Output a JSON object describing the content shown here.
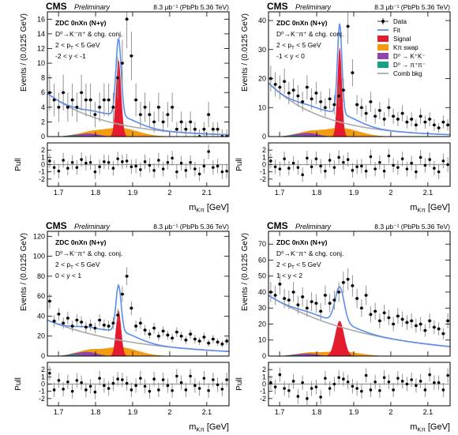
{
  "header": {
    "cms": "CMS",
    "preliminary": "Preliminary",
    "lumi": "8.3 μb⁻¹ (PbPb 5.36 TeV)"
  },
  "labels": {
    "ylabel": "Events / (0.0125 GeV)",
    "pull_label": "Pull",
    "xlabel": "m_Kπ [GeV]",
    "selection": "ZDC 0nXn (N+γ)",
    "decay": "D⁰→K⁻π⁺ & chg. conj.",
    "pt_cut": "2 < p_T < 5 GeV"
  },
  "legend": [
    {
      "label": "Data",
      "color": "#000000",
      "kind": "data"
    },
    {
      "label": "Fit",
      "color": "#5b8def",
      "kind": "line"
    },
    {
      "label": "Signal",
      "color": "#e41a2f",
      "kind": "box"
    },
    {
      "label": "Kπ swap",
      "color": "#f39c12",
      "kind": "box"
    },
    {
      "label": "D⁰ → K⁺K⁻",
      "color": "#8e44ad",
      "kind": "box"
    },
    {
      "label": "D⁰ → π⁺π⁻",
      "color": "#16a085",
      "kind": "box"
    },
    {
      "label": "Comb bkg",
      "color": "#aaaaaa",
      "kind": "line"
    }
  ],
  "colors": {
    "fit": "#5b8def",
    "signal": "#e41a2f",
    "swap": "#f39c12",
    "kk": "#8e44ad",
    "pipi": "#16a085",
    "comb": "#aaaaaa",
    "data": "#000000",
    "error": "#888888"
  },
  "chart_data": [
    {
      "type": "line",
      "rapidity": "-2 < y < -1",
      "xlim": [
        1.67,
        2.16
      ],
      "ylim": [
        0,
        17
      ],
      "yticks": [
        0,
        2,
        4,
        6,
        8,
        10,
        12,
        14,
        16
      ],
      "xticks": [
        1.7,
        1.8,
        1.9,
        2.0,
        2.1
      ],
      "signal": {
        "mean": 1.862,
        "amp": 10.5,
        "sigma": 0.007
      },
      "swap": {
        "mean": 1.862,
        "amp": 1.2,
        "sigma": 0.05
      },
      "kk": {
        "mean": 1.785,
        "amp": 0.4,
        "sigma": 0.025
      },
      "comb": {
        "a": 5.9,
        "b": -6.5
      },
      "data_y": [
        6,
        5,
        4,
        6,
        4,
        5,
        4,
        6,
        5,
        5,
        3,
        4,
        5,
        5,
        4,
        8,
        10,
        16,
        11,
        5,
        3,
        4,
        3,
        2,
        4,
        2,
        3,
        4,
        1,
        2,
        1,
        2,
        1,
        0,
        1,
        3,
        1,
        1,
        0,
        0
      ],
      "pull": [
        0.5,
        -0.4,
        -0.9,
        0.6,
        -0.5,
        0.3,
        -0.4,
        0.7,
        0.2,
        0.3,
        -1.0,
        -0.3,
        0.4,
        0.3,
        -0.5,
        0.8,
        0.4,
        0.5,
        -0.3,
        -0.2,
        -0.7,
        0.4,
        -0.1,
        -0.8,
        0.6,
        -0.6,
        0.3,
        0.9,
        -1.0,
        0.2,
        -0.8,
        0.3,
        -0.6,
        -1.3,
        -0.2,
        1.8,
        -0.4,
        -0.2,
        -1.0,
        -0.9
      ]
    },
    {
      "type": "line",
      "rapidity": "-1 < y < 0",
      "xlim": [
        1.67,
        2.16
      ],
      "ylim": [
        0,
        43
      ],
      "yticks": [
        0,
        10,
        20,
        30,
        40
      ],
      "xticks": [
        1.7,
        1.8,
        1.9,
        2.0,
        2.1
      ],
      "signal": {
        "mean": 1.862,
        "amp": 31,
        "sigma": 0.006
      },
      "swap": {
        "mean": 1.862,
        "amp": 3.0,
        "sigma": 0.05
      },
      "kk": {
        "mean": 1.78,
        "amp": 1.2,
        "sigma": 0.025
      },
      "comb": {
        "a": 18.5,
        "b": -6.8
      },
      "data_y": [
        20,
        18,
        17,
        19,
        15,
        16,
        14,
        12,
        17,
        13,
        15,
        12,
        10,
        13,
        11,
        14,
        16,
        38,
        22,
        11,
        10,
        8,
        12,
        7,
        9,
        6,
        10,
        7,
        6,
        8,
        5,
        6,
        4,
        7,
        5,
        6,
        4,
        3,
        5,
        4
      ],
      "pull": [
        0.5,
        -0.3,
        -0.6,
        0.8,
        -0.5,
        0.2,
        -0.4,
        -1.4,
        0.9,
        -0.3,
        0.8,
        -0.2,
        -0.9,
        0.6,
        -0.4,
        1.0,
        0.3,
        0.7,
        -0.8,
        -0.3,
        -0.2,
        -0.9,
        1.1,
        -0.6,
        0.3,
        -0.9,
        1.2,
        -0.1,
        -0.4,
        0.8,
        -0.6,
        0.2,
        -1.0,
        1.0,
        -0.1,
        0.7,
        -0.5,
        -1.0,
        0.5,
        0.0
      ]
    },
    {
      "type": "line",
      "rapidity": "0 < y < 1",
      "xlim": [
        1.67,
        2.16
      ],
      "ylim": [
        0,
        125
      ],
      "yticks": [
        0,
        20,
        40,
        60,
        80,
        100,
        120
      ],
      "xticks": [
        1.7,
        1.8,
        1.9,
        2.0,
        2.1
      ],
      "signal": {
        "mean": 1.862,
        "amp": 46,
        "sigma": 0.007
      },
      "swap": {
        "mean": 1.862,
        "amp": 9,
        "sigma": 0.05
      },
      "kk": {
        "mean": 1.78,
        "amp": 4,
        "sigma": 0.025
      },
      "comb": {
        "a": 36,
        "b": -4.2
      },
      "data_y": [
        55,
        35,
        42,
        33,
        38,
        30,
        36,
        34,
        29,
        31,
        28,
        36,
        31,
        30,
        33,
        41,
        62,
        80,
        48,
        30,
        33,
        26,
        22,
        28,
        20,
        25,
        21,
        18,
        24,
        20,
        16,
        22,
        17,
        15,
        19,
        13,
        17,
        14,
        12,
        15
      ],
      "pull": [
        1.5,
        -0.8,
        0.5,
        -0.7,
        0.3,
        -1.0,
        0.5,
        0.2,
        -0.8,
        -0.3,
        -1.1,
        0.8,
        -0.2,
        -0.6,
        0.1,
        0.7,
        0.6,
        0.1,
        -0.8,
        -0.2,
        0.8,
        -0.3,
        -1.0,
        0.7,
        -0.8,
        0.6,
        -0.2,
        -0.9,
        1.1,
        0.2,
        -0.8,
        1.1,
        -0.2,
        -0.6,
        0.8,
        -0.9,
        0.6,
        -0.1,
        -0.7,
        0.6
      ]
    },
    {
      "type": "line",
      "rapidity": "1 < y < 2",
      "xlim": [
        1.67,
        2.16
      ],
      "ylim": [
        0,
        78
      ],
      "yticks": [
        0,
        10,
        20,
        30,
        40,
        50,
        60,
        70
      ],
      "xticks": [
        1.7,
        1.8,
        1.9,
        2.0,
        2.1
      ],
      "signal": {
        "mean": 1.862,
        "amp": 22,
        "sigma": 0.012
      },
      "swap": {
        "mean": 1.862,
        "amp": 3,
        "sigma": 0.05
      },
      "kk": {
        "mean": 1.78,
        "amp": 1.5,
        "sigma": 0.025
      },
      "comb": {
        "a": 38,
        "b": -3.8
      },
      "data_y": [
        40,
        38,
        45,
        36,
        35,
        40,
        32,
        37,
        30,
        34,
        33,
        28,
        38,
        33,
        35,
        40,
        46,
        48,
        44,
        36,
        30,
        38,
        26,
        28,
        22,
        27,
        24,
        20,
        25,
        23,
        21,
        22,
        19,
        20,
        16,
        22,
        18,
        17,
        14,
        22
      ],
      "pull": [
        0.2,
        -0.4,
        1.3,
        -0.6,
        -0.9,
        0.4,
        -1.7,
        0.2,
        -2.0,
        -0.6,
        -0.4,
        -1.8,
        0.8,
        -0.6,
        0.0,
        0.9,
        0.7,
        0.3,
        -0.3,
        -0.6,
        -1.0,
        1.2,
        -0.8,
        0.3,
        -0.9,
        0.9,
        0.3,
        -0.8,
        0.8,
        0.4,
        0.0,
        0.6,
        -0.2,
        0.4,
        -0.8,
        1.3,
        0.2,
        0.2,
        -0.8,
        1.2
      ]
    }
  ]
}
